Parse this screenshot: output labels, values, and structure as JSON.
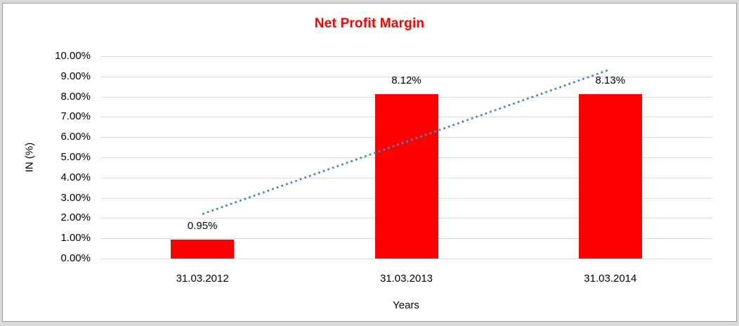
{
  "window": {
    "background_color": "#d9d9d9",
    "chart_background_color": "#ffffff",
    "frame_border_color": "#9b9b9b"
  },
  "chart_data": {
    "type": "bar",
    "title": "Net Profit Margin",
    "title_color": "#ff0000",
    "xlabel": "Years",
    "ylabel": "IN (%)",
    "categories": [
      "31.03.2012",
      "31.03.2013",
      "31.03.2014"
    ],
    "values": [
      0.95,
      8.12,
      8.13
    ],
    "data_labels": [
      "0.95%",
      "8.12%",
      "8.13%"
    ],
    "ylim": [
      0,
      10
    ],
    "ytick_step": 1,
    "ytick_labels": [
      "0.00%",
      "1.00%",
      "2.00%",
      "3.00%",
      "4.00%",
      "5.00%",
      "6.00%",
      "7.00%",
      "8.00%",
      "9.00%",
      "10.00%"
    ],
    "grid": true,
    "legend": "none",
    "bar_color": "#ff0000",
    "gridline_color": "#d9d9d9",
    "trendline": {
      "style": "dotted",
      "color": "#4a86c6",
      "start_value": 2.2,
      "end_value": 9.35,
      "start_category_index": 0,
      "end_category_index": 2
    }
  }
}
